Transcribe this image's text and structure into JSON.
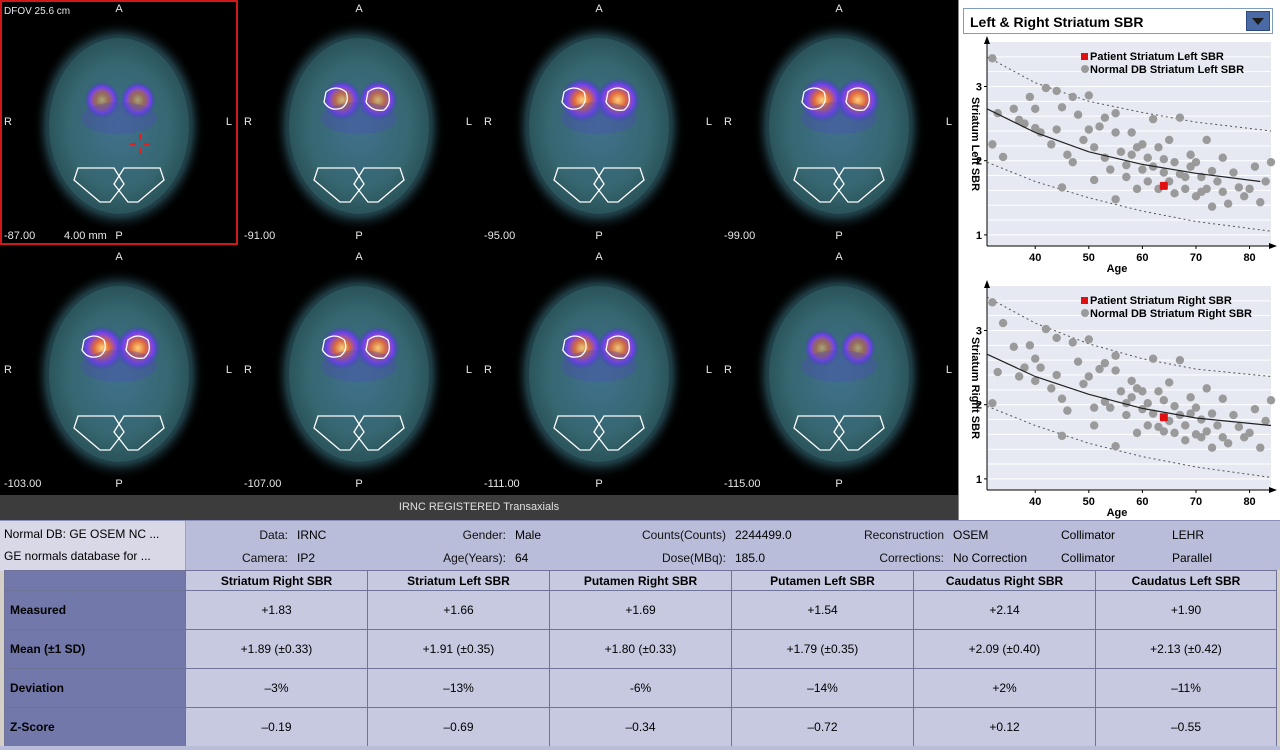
{
  "viewer": {
    "dfov": "DFOV 25.6 cm",
    "thickness": "4.00 mm",
    "caption": "IRNC REGISTERED Transaxials",
    "orientation": {
      "anterior": "A",
      "posterior": "P",
      "right": "R",
      "left": "L"
    },
    "slices": [
      {
        "position": "-87.00",
        "selected": true,
        "hot": 0.55
      },
      {
        "position": "-91.00",
        "selected": false,
        "hot": 0.75
      },
      {
        "position": "-95.00",
        "selected": false,
        "hot": 1.0
      },
      {
        "position": "-99.00",
        "selected": false,
        "hot": 1.0
      },
      {
        "position": "-103.00",
        "selected": false,
        "hot": 1.0
      },
      {
        "position": "-107.00",
        "selected": false,
        "hot": 0.95
      },
      {
        "position": "-111.00",
        "selected": false,
        "hot": 0.9
      },
      {
        "position": "-115.00",
        "selected": false,
        "hot": 0.55
      }
    ]
  },
  "chart_selector": {
    "label": "Left & Right Striatum SBR"
  },
  "chart_data": [
    {
      "type": "scatter",
      "ylabel": "Striatum Left SBR",
      "xlabel": "Age",
      "xlim": [
        31,
        84
      ],
      "ylim": [
        0.85,
        3.6
      ],
      "xticks": [
        40,
        50,
        60,
        70,
        80
      ],
      "yticks": [
        1,
        2,
        3
      ],
      "legend": [
        "Patient Striatum Left SBR",
        "Normal DB Striatum Left SBR"
      ],
      "patient": {
        "x": 64,
        "y": 1.66
      },
      "fit": [
        [
          31,
          2.7
        ],
        [
          40,
          2.38
        ],
        [
          50,
          2.12
        ],
        [
          60,
          1.95
        ],
        [
          70,
          1.83
        ],
        [
          82,
          1.72
        ]
      ],
      "upper": [
        [
          31,
          3.4
        ],
        [
          40,
          3.05
        ],
        [
          50,
          2.8
        ],
        [
          60,
          2.65
        ],
        [
          70,
          2.52
        ],
        [
          84,
          2.4
        ]
      ],
      "lower": [
        [
          31,
          1.98
        ],
        [
          40,
          1.72
        ],
        [
          50,
          1.5
        ],
        [
          60,
          1.32
        ],
        [
          70,
          1.18
        ],
        [
          84,
          1.05
        ]
      ],
      "normals": [
        [
          32,
          3.38
        ],
        [
          33,
          2.64
        ],
        [
          32,
          2.22
        ],
        [
          34,
          2.05
        ],
        [
          36,
          2.7
        ],
        [
          37,
          2.55
        ],
        [
          38,
          2.5
        ],
        [
          39,
          2.86
        ],
        [
          40,
          2.7
        ],
        [
          40,
          2.44
        ],
        [
          41,
          2.38
        ],
        [
          42,
          2.98
        ],
        [
          43,
          2.22
        ],
        [
          44,
          2.94
        ],
        [
          44,
          2.42
        ],
        [
          45,
          2.72
        ],
        [
          46,
          2.08
        ],
        [
          47,
          1.98
        ],
        [
          47,
          2.86
        ],
        [
          48,
          2.62
        ],
        [
          49,
          2.28
        ],
        [
          50,
          2.88
        ],
        [
          50,
          2.42
        ],
        [
          51,
          2.18
        ],
        [
          51,
          1.74
        ],
        [
          52,
          2.46
        ],
        [
          53,
          2.58
        ],
        [
          53,
          2.04
        ],
        [
          54,
          1.88
        ],
        [
          55,
          2.38
        ],
        [
          55,
          2.64
        ],
        [
          56,
          2.12
        ],
        [
          57,
          1.78
        ],
        [
          57,
          1.94
        ],
        [
          58,
          2.38
        ],
        [
          58,
          2.08
        ],
        [
          59,
          2.18
        ],
        [
          59,
          1.62
        ],
        [
          60,
          2.22
        ],
        [
          60,
          1.88
        ],
        [
          61,
          2.04
        ],
        [
          61,
          1.72
        ],
        [
          62,
          2.56
        ],
        [
          62,
          1.92
        ],
        [
          63,
          1.62
        ],
        [
          63,
          2.18
        ],
        [
          64,
          2.02
        ],
        [
          64,
          1.84
        ],
        [
          65,
          2.28
        ],
        [
          65,
          1.72
        ],
        [
          66,
          1.56
        ],
        [
          66,
          1.98
        ],
        [
          67,
          1.82
        ],
        [
          67,
          2.58
        ],
        [
          68,
          1.78
        ],
        [
          68,
          1.62
        ],
        [
          69,
          2.08
        ],
        [
          69,
          1.92
        ],
        [
          70,
          1.52
        ],
        [
          70,
          1.98
        ],
        [
          71,
          1.78
        ],
        [
          72,
          2.28
        ],
        [
          72,
          1.62
        ],
        [
          73,
          1.86
        ],
        [
          73,
          1.38
        ],
        [
          74,
          1.72
        ],
        [
          75,
          2.04
        ],
        [
          75,
          1.58
        ],
        [
          76,
          1.42
        ],
        [
          77,
          1.84
        ],
        [
          78,
          1.64
        ],
        [
          79,
          1.52
        ],
        [
          80,
          1.62
        ],
        [
          81,
          1.92
        ],
        [
          82,
          1.44
        ],
        [
          83,
          1.72
        ],
        [
          84,
          1.98
        ],
        [
          45,
          1.64
        ],
        [
          55,
          1.48
        ],
        [
          71,
          1.58
        ]
      ]
    },
    {
      "type": "scatter",
      "ylabel": "Striatum Right SBR",
      "xlabel": "Age",
      "xlim": [
        31,
        84
      ],
      "ylim": [
        0.85,
        3.6
      ],
      "xticks": [
        40,
        50,
        60,
        70,
        80
      ],
      "yticks": [
        1,
        2,
        3
      ],
      "legend": [
        "Patient Striatum Right SBR",
        "Normal DB Striatum Right SBR"
      ],
      "patient": {
        "x": 64,
        "y": 1.83
      },
      "fit": [
        [
          31,
          2.68
        ],
        [
          40,
          2.38
        ],
        [
          50,
          2.14
        ],
        [
          60,
          1.95
        ],
        [
          70,
          1.82
        ],
        [
          84,
          1.72
        ]
      ],
      "upper": [
        [
          31,
          3.45
        ],
        [
          40,
          3.1
        ],
        [
          50,
          2.82
        ],
        [
          60,
          2.62
        ],
        [
          70,
          2.48
        ],
        [
          84,
          2.38
        ]
      ],
      "lower": [
        [
          31,
          1.98
        ],
        [
          40,
          1.72
        ],
        [
          50,
          1.48
        ],
        [
          60,
          1.3
        ],
        [
          70,
          1.16
        ],
        [
          84,
          1.02
        ]
      ],
      "normals": [
        [
          32,
          3.38
        ],
        [
          33,
          2.44
        ],
        [
          32,
          2.02
        ],
        [
          34,
          3.1
        ],
        [
          36,
          2.78
        ],
        [
          37,
          2.38
        ],
        [
          38,
          2.5
        ],
        [
          39,
          2.8
        ],
        [
          40,
          2.62
        ],
        [
          40,
          2.32
        ],
        [
          41,
          2.5
        ],
        [
          42,
          3.02
        ],
        [
          43,
          2.22
        ],
        [
          44,
          2.9
        ],
        [
          44,
          2.4
        ],
        [
          45,
          2.08
        ],
        [
          46,
          1.92
        ],
        [
          47,
          2.84
        ],
        [
          48,
          2.58
        ],
        [
          49,
          2.28
        ],
        [
          50,
          2.88
        ],
        [
          50,
          2.38
        ],
        [
          51,
          1.96
        ],
        [
          51,
          1.72
        ],
        [
          52,
          2.48
        ],
        [
          53,
          2.56
        ],
        [
          53,
          2.04
        ],
        [
          54,
          1.96
        ],
        [
          55,
          2.46
        ],
        [
          55,
          2.66
        ],
        [
          56,
          2.18
        ],
        [
          57,
          1.86
        ],
        [
          57,
          2.02
        ],
        [
          58,
          2.32
        ],
        [
          58,
          2.1
        ],
        [
          59,
          2.22
        ],
        [
          59,
          1.62
        ],
        [
          60,
          2.18
        ],
        [
          60,
          1.94
        ],
        [
          61,
          2.02
        ],
        [
          61,
          1.72
        ],
        [
          62,
          2.62
        ],
        [
          62,
          1.88
        ],
        [
          63,
          1.7
        ],
        [
          63,
          2.18
        ],
        [
          64,
          2.06
        ],
        [
          64,
          1.64
        ],
        [
          65,
          2.3
        ],
        [
          65,
          1.78
        ],
        [
          66,
          1.62
        ],
        [
          66,
          1.98
        ],
        [
          67,
          1.86
        ],
        [
          67,
          2.6
        ],
        [
          68,
          1.72
        ],
        [
          68,
          1.52
        ],
        [
          69,
          2.1
        ],
        [
          69,
          1.88
        ],
        [
          70,
          1.6
        ],
        [
          70,
          1.96
        ],
        [
          71,
          1.8
        ],
        [
          72,
          2.22
        ],
        [
          72,
          1.64
        ],
        [
          73,
          1.88
        ],
        [
          73,
          1.42
        ],
        [
          74,
          1.72
        ],
        [
          75,
          2.08
        ],
        [
          75,
          1.56
        ],
        [
          76,
          1.48
        ],
        [
          77,
          1.86
        ],
        [
          78,
          1.7
        ],
        [
          79,
          1.56
        ],
        [
          80,
          1.62
        ],
        [
          81,
          1.94
        ],
        [
          82,
          1.42
        ],
        [
          83,
          1.78
        ],
        [
          84,
          2.06
        ],
        [
          45,
          1.58
        ],
        [
          55,
          1.44
        ],
        [
          71,
          1.56
        ]
      ]
    }
  ],
  "info": {
    "normal_db_line1": "Normal DB: GE OSEM NC ...",
    "normal_db_line2": "GE normals database for ...",
    "data_label": "Data:",
    "data_value": "IRNC",
    "camera_label": "Camera:",
    "camera_value": "IP2",
    "gender_label": "Gender:",
    "gender_value": "Male",
    "age_label": "Age(Years):",
    "age_value": "64",
    "counts_label": "Counts(Counts)",
    "counts_value": "2244499.0",
    "dose_label": "Dose(MBq):",
    "dose_value": "185.0",
    "recon_label": "Reconstruction",
    "recon_value": "OSEM",
    "corrections_label": "Corrections:",
    "corrections_value": "No Correction",
    "collimator_label1": "Collimator",
    "collimator_value1": "LEHR",
    "collimator_label2": "Collimator",
    "collimator_value2": "Parallel"
  },
  "results": {
    "columns": [
      "Striatum Right SBR",
      "Striatum Left SBR",
      "Putamen Right SBR",
      "Putamen Left SBR",
      "Caudatus Right SBR",
      "Caudatus Left SBR"
    ],
    "rows": [
      {
        "label": "Measured",
        "values": [
          "+1.83",
          "+1.66",
          "+1.69",
          "+1.54",
          "+2.14",
          "+1.90"
        ]
      },
      {
        "label": "Mean (±1 SD)",
        "values": [
          "+1.89 (±0.33)",
          "+1.91 (±0.35)",
          "+1.80 (±0.33)",
          "+1.79 (±0.35)",
          "+2.09 (±0.40)",
          "+2.13 (±0.42)"
        ]
      },
      {
        "label": "Deviation",
        "values": [
          "–3%",
          "–13%",
          "-6%",
          "–14%",
          "+2%",
          "–11%"
        ]
      },
      {
        "label": "Z-Score",
        "values": [
          "–0.19",
          "–0.69",
          "–0.34",
          "–0.72",
          "+0.12",
          "–0.55"
        ]
      }
    ]
  },
  "colors": {
    "selected_frame": "#d01818",
    "patient_point": "#e01010",
    "normal_point": "#9a9a9a",
    "table_row_label": "#7278aa",
    "table_cell": "#c6c9e0"
  }
}
